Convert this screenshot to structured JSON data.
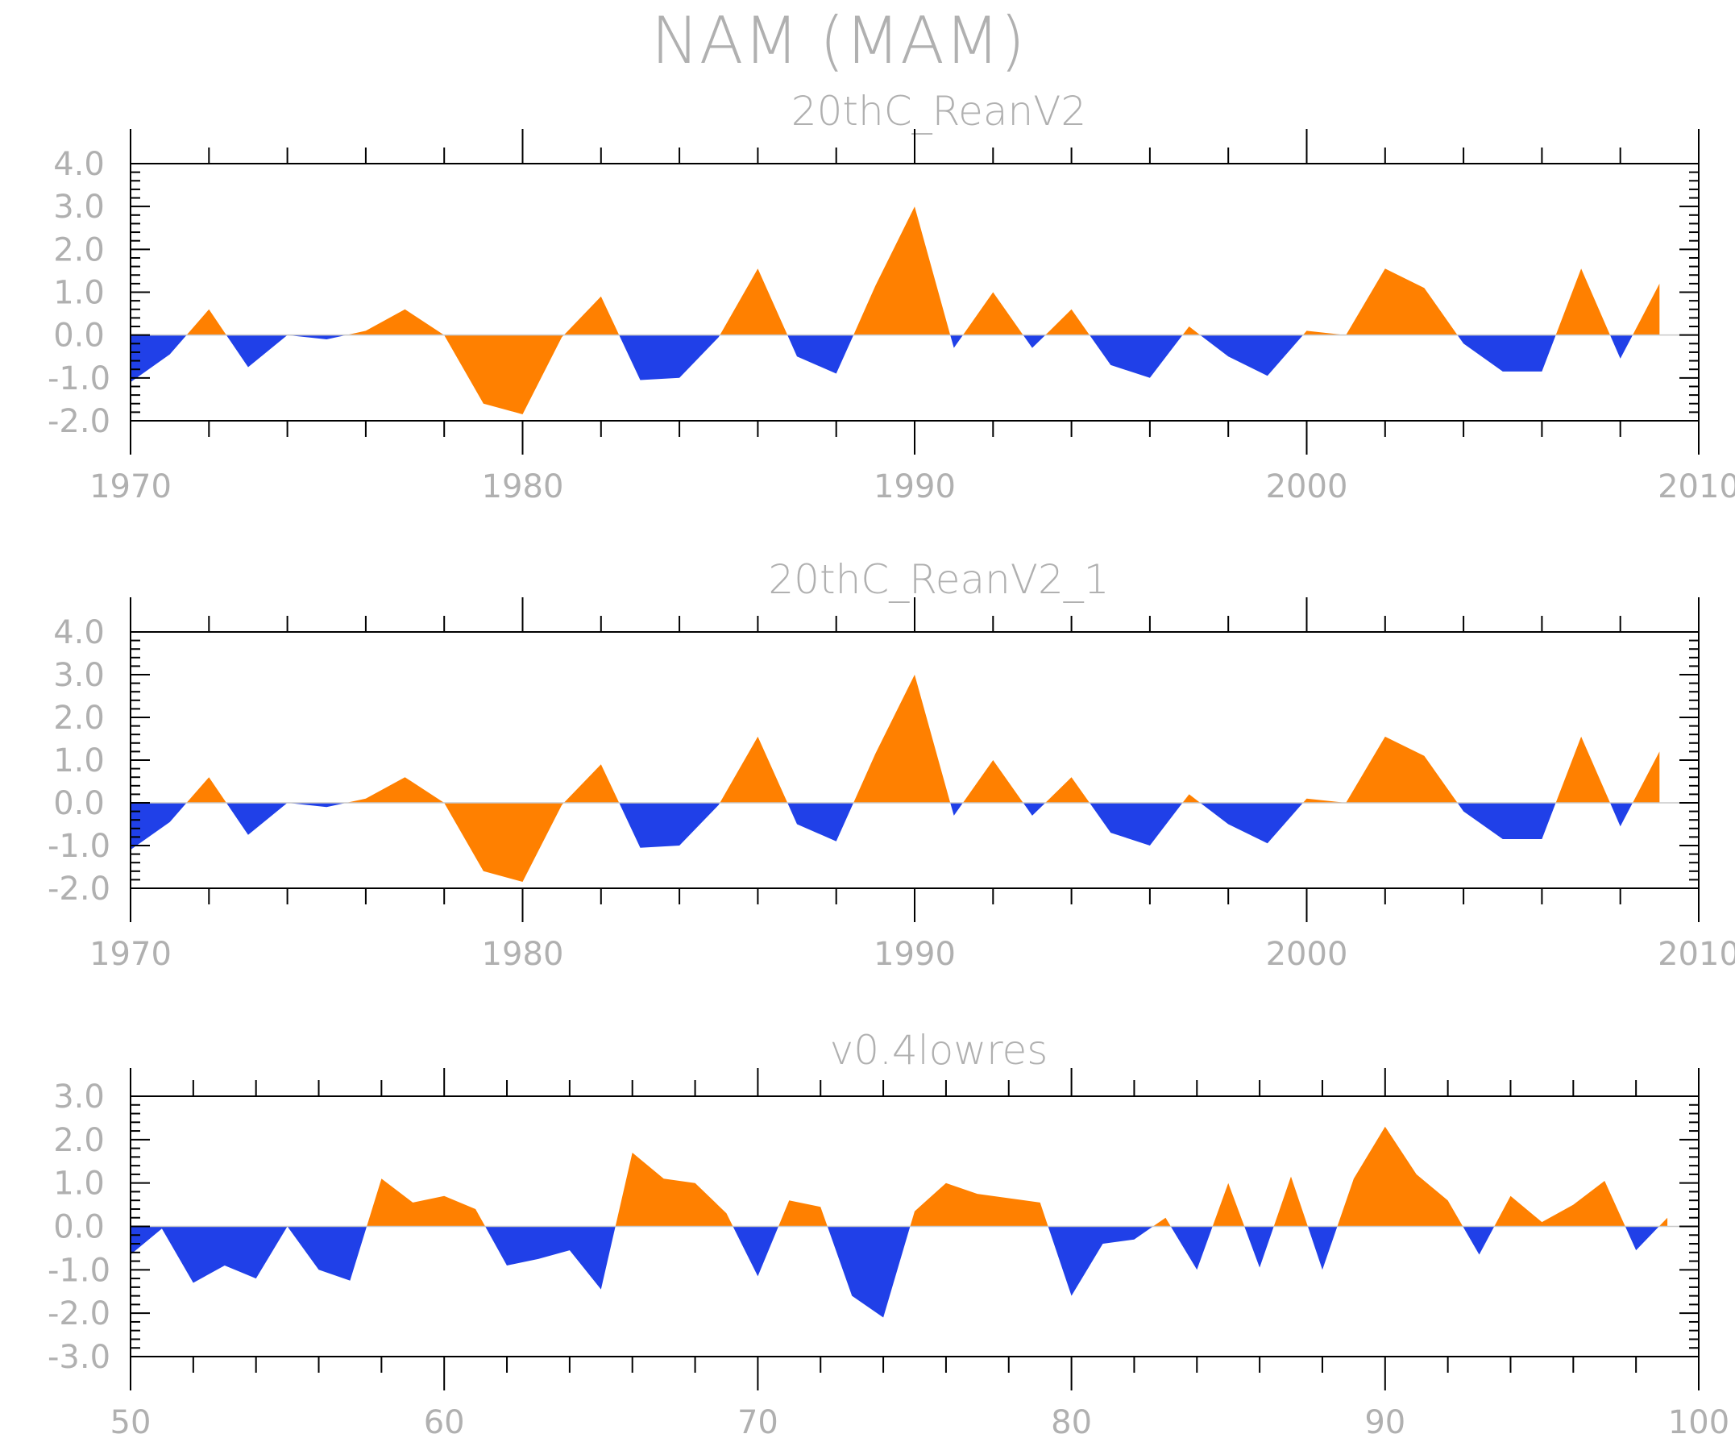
{
  "title": "NAM (MAM)",
  "colors": {
    "positive": "#ff8000",
    "negative": "#2040e8",
    "text": "#b0b0b0",
    "frame": "#000000"
  },
  "chart_data": [
    {
      "type": "area",
      "title": "20thC_ReanV2",
      "xlim": [
        1970,
        2010
      ],
      "ylim": [
        -2,
        4
      ],
      "xticks": [
        1970,
        1980,
        1990,
        2000,
        2010
      ],
      "xtick_labels": [
        "1970",
        "1980",
        "1990",
        "2000",
        "2010"
      ],
      "yticks": [
        -2,
        -1,
        0,
        1,
        2,
        3,
        4
      ],
      "ytick_labels": [
        "-2.0",
        "-1.0",
        "0.0",
        "1.0",
        "2.0",
        "3.0",
        "4.0"
      ],
      "x": [
        1970,
        1971,
        1972,
        1973,
        1974,
        1975,
        1976,
        1977,
        1978,
        1979,
        1980,
        1981,
        1982,
        1983,
        1984,
        1985,
        1986,
        1987,
        1988,
        1989,
        1990,
        1991,
        1992,
        1993,
        1994,
        1995,
        1996,
        1997,
        1998,
        1999,
        2000,
        2001,
        2002,
        2003,
        2004,
        2005,
        2006,
        2007,
        2008,
        2009
      ],
      "values": [
        -1.1,
        -0.45,
        0.6,
        -0.75,
        0.0,
        -0.1,
        0.1,
        0.6,
        0.0,
        -1.6,
        -1.85,
        -0.05,
        0.9,
        -1.05,
        -1.0,
        -0.05,
        1.55,
        -0.5,
        -0.9,
        1.15,
        3.0,
        -0.3,
        1.0,
        -0.3,
        0.6,
        -0.7,
        -1.0,
        0.2,
        -0.5,
        -0.95,
        0.1,
        0.0,
        1.55,
        1.1,
        -0.2,
        -0.85,
        -0.85,
        1.55,
        -0.55,
        1.2
      ]
    },
    {
      "type": "area",
      "title": "20thC_ReanV2_1",
      "xlim": [
        1970,
        2010
      ],
      "ylim": [
        -2,
        4
      ],
      "xticks": [
        1970,
        1980,
        1990,
        2000,
        2010
      ],
      "xtick_labels": [
        "1970",
        "1980",
        "1990",
        "2000",
        "2010"
      ],
      "yticks": [
        -2,
        -1,
        0,
        1,
        2,
        3,
        4
      ],
      "ytick_labels": [
        "-2.0",
        "-1.0",
        "0.0",
        "1.0",
        "2.0",
        "3.0",
        "4.0"
      ],
      "x": [
        1970,
        1971,
        1972,
        1973,
        1974,
        1975,
        1976,
        1977,
        1978,
        1979,
        1980,
        1981,
        1982,
        1983,
        1984,
        1985,
        1986,
        1987,
        1988,
        1989,
        1990,
        1991,
        1992,
        1993,
        1994,
        1995,
        1996,
        1997,
        1998,
        1999,
        2000,
        2001,
        2002,
        2003,
        2004,
        2005,
        2006,
        2007,
        2008,
        2009
      ],
      "values": [
        -1.1,
        -0.45,
        0.6,
        -0.75,
        0.0,
        -0.1,
        0.1,
        0.6,
        0.0,
        -1.6,
        -1.85,
        -0.05,
        0.9,
        -1.05,
        -1.0,
        -0.05,
        1.55,
        -0.5,
        -0.9,
        1.15,
        3.0,
        -0.3,
        1.0,
        -0.3,
        0.6,
        -0.7,
        -1.0,
        0.2,
        -0.5,
        -0.95,
        0.1,
        0.0,
        1.55,
        1.1,
        -0.2,
        -0.85,
        -0.85,
        1.55,
        -0.55,
        1.2
      ]
    },
    {
      "type": "area",
      "title": "v0.4lowres",
      "xlim": [
        50,
        100
      ],
      "ylim": [
        -3,
        3
      ],
      "xticks": [
        50,
        60,
        70,
        80,
        90,
        100
      ],
      "xtick_labels": [
        "50",
        "60",
        "70",
        "80",
        "90",
        "100"
      ],
      "yticks": [
        -3,
        -2,
        -1,
        0,
        1,
        2,
        3
      ],
      "ytick_labels": [
        "-3.0",
        "-2.0",
        "-1.0",
        "0.0",
        "1.0",
        "2.0",
        "3.0"
      ],
      "x": [
        50,
        51,
        52,
        53,
        54,
        55,
        56,
        57,
        58,
        59,
        60,
        61,
        62,
        63,
        64,
        65,
        66,
        67,
        68,
        69,
        70,
        71,
        72,
        73,
        74,
        75,
        76,
        77,
        78,
        79,
        80,
        81,
        82,
        83,
        84,
        85,
        86,
        87,
        88,
        89,
        90,
        91,
        92,
        93,
        94,
        95,
        96,
        97,
        98,
        99
      ],
      "values": [
        -0.65,
        -0.05,
        -1.3,
        -0.9,
        -1.2,
        0.0,
        -1.0,
        -1.25,
        1.1,
        0.55,
        0.7,
        0.4,
        -0.9,
        -0.75,
        -0.55,
        -1.45,
        1.7,
        1.1,
        1.0,
        0.3,
        -1.15,
        0.6,
        0.45,
        -1.6,
        -2.1,
        0.35,
        1.0,
        0.75,
        0.65,
        0.55,
        -1.6,
        -0.4,
        -0.3,
        0.2,
        -1.0,
        1.0,
        -0.95,
        1.15,
        -1.0,
        1.1,
        2.3,
        1.2,
        0.6,
        -0.65,
        0.7,
        0.1,
        0.5,
        1.05,
        -0.55,
        0.2
      ]
    }
  ]
}
